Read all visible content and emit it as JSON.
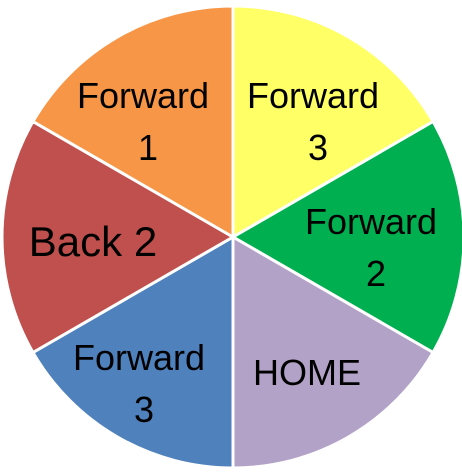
{
  "spinner": {
    "segments": [
      {
        "id": "forward-3-top",
        "lines": [
          "Forward",
          "3"
        ],
        "color": "#ffff66"
      },
      {
        "id": "forward-2",
        "lines": [
          "Forward",
          "2"
        ],
        "color": "#00b050"
      },
      {
        "id": "home",
        "lines": [
          "HOME"
        ],
        "color": "#b3a2c7"
      },
      {
        "id": "forward-3-bottom",
        "lines": [
          "Forward",
          "3"
        ],
        "color": "#4f81bd"
      },
      {
        "id": "back-2",
        "lines": [
          "Back 2"
        ],
        "color": "#c0504d"
      },
      {
        "id": "forward-1",
        "lines": [
          "Forward",
          "1"
        ],
        "color": "#f79646"
      }
    ],
    "divider_color": "#ffffff"
  }
}
